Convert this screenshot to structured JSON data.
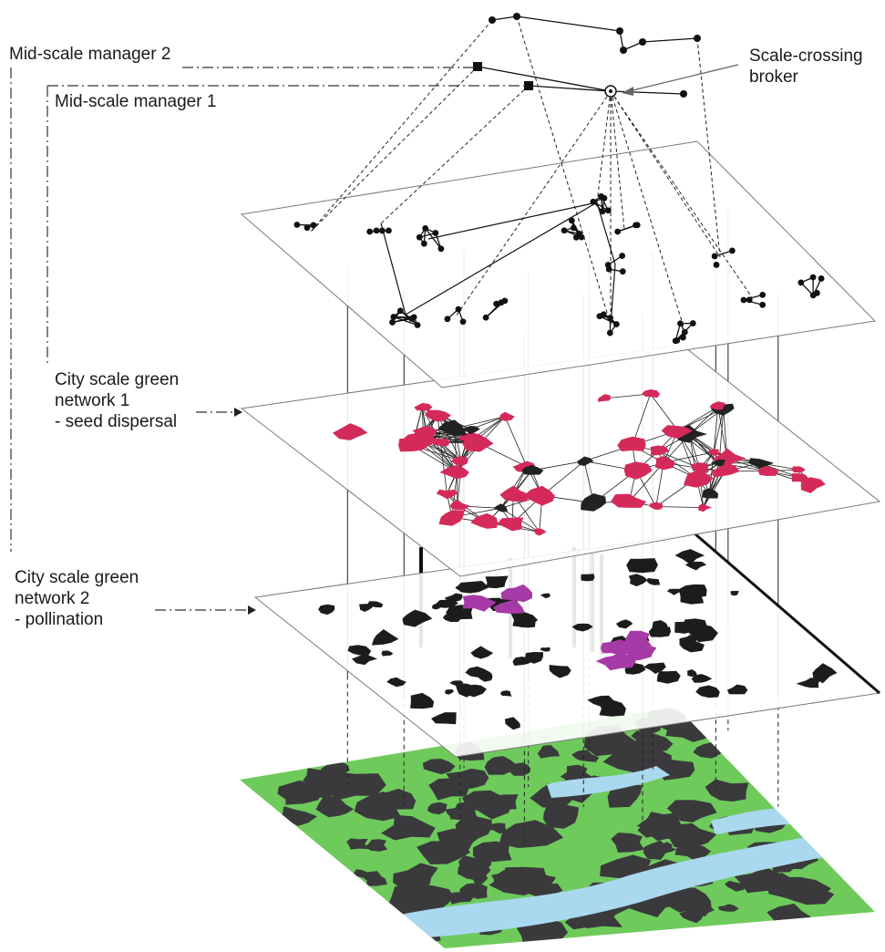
{
  "labels": {
    "mid_scale_manager_2": "Mid-scale manager 2",
    "mid_scale_manager_1": "Mid-scale manager 1",
    "scale_crossing_broker": "Scale-crossing\nbroker",
    "city_network_1": "City scale green\nnetwork 1\n- seed dispersal",
    "city_network_2": "City scale green\nnetwork 2\n- pollination"
  },
  "colors": {
    "land_green": "#6fca5c",
    "urban_grey": "#3a3a3c",
    "water_blue": "#a9d8ef",
    "seed_network_red": "#d42a5a",
    "pollination_purple": "#a63aa6",
    "line_black": "#111111",
    "plane_stroke": "#7a7a7a"
  }
}
